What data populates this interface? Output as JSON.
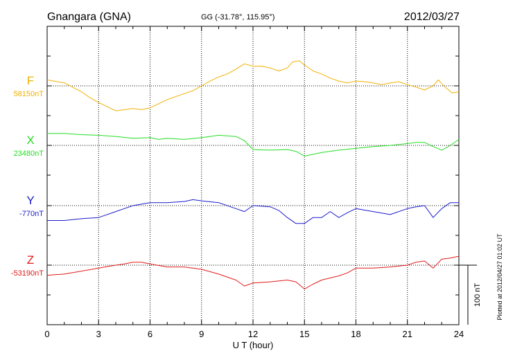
{
  "header": {
    "station": "Gnangara (GNA)",
    "coords": "GG (-31.78°, 115.95°)",
    "date": "2012/03/27"
  },
  "plotted_note": "Plotted at 2012/04/27 01:02 UT",
  "chart_data": {
    "type": "line",
    "xlabel": "U T (hour)",
    "xlim": [
      0,
      24
    ],
    "x_ticks": [
      0,
      3,
      6,
      9,
      12,
      15,
      18,
      21,
      24
    ],
    "scale_bar": {
      "value_nT": 100,
      "label": "100 nT"
    },
    "series": [
      {
        "name": "F",
        "baseline_label": "58150nT",
        "baseline_nT": 58150,
        "color": "#f0b000",
        "x": [
          0,
          1,
          2,
          2.5,
          3,
          3.5,
          4,
          4.5,
          5,
          5.5,
          6,
          6.5,
          7,
          7.5,
          8,
          8.5,
          9,
          9.5,
          10,
          10.5,
          11,
          11.5,
          12,
          12.5,
          13,
          13.5,
          14,
          14.3,
          14.7,
          15,
          15.5,
          16,
          16.5,
          17,
          17.5,
          18,
          18.5,
          19,
          19.5,
          20,
          20.5,
          21,
          21.5,
          22,
          22.5,
          22.8,
          23.2,
          23.6,
          24
        ],
        "values": [
          58160,
          58155,
          58140,
          58130,
          58122,
          58115,
          58108,
          58110,
          58112,
          58110,
          58113,
          58120,
          58127,
          58132,
          58137,
          58142,
          58150,
          58158,
          58165,
          58170,
          58178,
          58187,
          58183,
          58183,
          58180,
          58175,
          58180,
          58190,
          58192,
          58185,
          58175,
          58170,
          58163,
          58158,
          58155,
          58158,
          58157,
          58155,
          58152,
          58155,
          58157,
          58152,
          58148,
          58143,
          58150,
          58160,
          58148,
          58138,
          58140
        ]
      },
      {
        "name": "X",
        "baseline_label": "23480nT",
        "baseline_nT": 23480,
        "color": "#22dd22",
        "x": [
          0,
          1,
          2,
          3,
          4,
          5,
          6,
          6.5,
          7,
          8,
          9,
          10,
          11,
          11.5,
          12,
          13,
          14,
          14.5,
          15,
          15.5,
          16,
          17,
          18,
          19,
          20,
          21,
          21.5,
          22,
          22.5,
          23,
          23.5,
          24
        ],
        "values": [
          23500,
          23500,
          23498,
          23497,
          23495,
          23492,
          23493,
          23490,
          23492,
          23490,
          23493,
          23497,
          23495,
          23488,
          23473,
          23472,
          23473,
          23470,
          23462,
          23465,
          23468,
          23472,
          23475,
          23478,
          23480,
          23483,
          23485,
          23485,
          23478,
          23472,
          23480,
          23490
        ]
      },
      {
        "name": "Y",
        "baseline_label": "-770nT",
        "baseline_nT": -770,
        "color": "#1a1acc",
        "x": [
          0,
          1,
          2,
          3,
          4,
          4.5,
          5,
          6,
          7,
          8,
          8.5,
          9,
          10,
          11,
          11.5,
          12,
          13,
          13.5,
          14,
          14.5,
          15,
          15.5,
          16,
          16.5,
          17,
          17.5,
          18,
          19,
          20,
          21,
          21.5,
          22,
          22.5,
          23,
          23.5,
          24
        ],
        "values": [
          -795,
          -795,
          -792,
          -790,
          -780,
          -775,
          -770,
          -765,
          -765,
          -763,
          -760,
          -762,
          -765,
          -775,
          -780,
          -770,
          -772,
          -778,
          -790,
          -800,
          -800,
          -790,
          -790,
          -780,
          -790,
          -782,
          -775,
          -780,
          -785,
          -775,
          -772,
          -770,
          -790,
          -775,
          -765,
          -765
        ]
      },
      {
        "name": "Z",
        "baseline_label": "-53190nT",
        "baseline_nT": -53190,
        "color": "#e01818",
        "x": [
          0,
          1,
          2,
          3,
          4,
          4.5,
          5,
          5.5,
          6,
          7,
          8,
          9,
          10,
          11,
          11.5,
          12,
          13,
          14,
          14.5,
          15,
          15.5,
          16,
          17,
          17.5,
          18,
          19,
          20,
          21,
          21.5,
          22,
          22.5,
          23,
          23.5,
          24
        ],
        "values": [
          -53207,
          -53205,
          -53200,
          -53195,
          -53190,
          -53188,
          -53185,
          -53185,
          -53188,
          -53193,
          -53193,
          -53197,
          -53205,
          -53215,
          -53225,
          -53220,
          -53218,
          -53215,
          -53218,
          -53230,
          -53222,
          -53215,
          -53208,
          -53203,
          -53195,
          -53195,
          -53193,
          -53190,
          -53185,
          -53183,
          -53195,
          -53180,
          -53178,
          -53175
        ]
      }
    ]
  }
}
